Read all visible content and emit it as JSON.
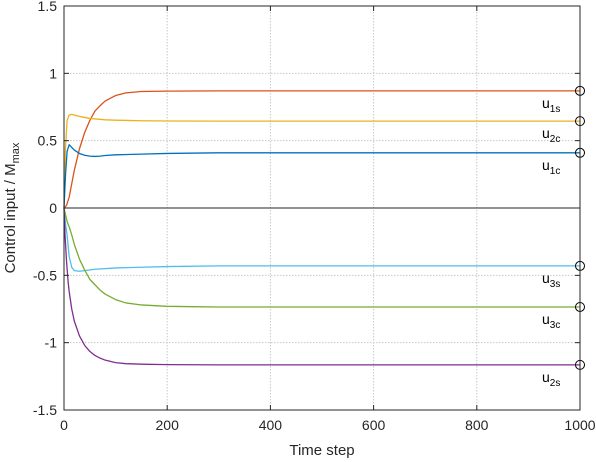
{
  "chart_data": {
    "type": "line",
    "xlabel": "Time step",
    "ylabel": "Control input / M",
    "ylabel_subscript": "max",
    "xlim": [
      0,
      1000
    ],
    "ylim": [
      -1.5,
      1.5
    ],
    "xticks": [
      0,
      200,
      400,
      600,
      800,
      1000
    ],
    "yticks": [
      -1.5,
      -1,
      -0.5,
      0,
      0.5,
      1,
      1.5
    ],
    "xtick_labels": [
      "0",
      "200",
      "400",
      "600",
      "800",
      "1000"
    ],
    "ytick_labels": [
      "-1.5",
      "-1",
      "-0.5",
      "0",
      "0.5",
      "1",
      "1.5"
    ],
    "grid": true,
    "end_markers": "open-circle",
    "series": [
      {
        "label": "u",
        "sub": "1s",
        "color": "#D95319",
        "x": [
          0,
          5,
          10,
          15,
          20,
          30,
          40,
          50,
          60,
          70,
          80,
          100,
          120,
          150,
          200,
          250,
          300,
          400,
          600,
          800,
          1000
        ],
        "y": [
          0,
          0.02,
          0.08,
          0.18,
          0.28,
          0.44,
          0.56,
          0.65,
          0.72,
          0.76,
          0.795,
          0.835,
          0.855,
          0.865,
          0.868,
          0.869,
          0.87,
          0.87,
          0.87,
          0.87,
          0.87
        ]
      },
      {
        "label": "u",
        "sub": "2c",
        "color": "#EDB120",
        "x": [
          0,
          3,
          6,
          10,
          15,
          20,
          30,
          50,
          80,
          100,
          150,
          200,
          300,
          400,
          600,
          800,
          1000
        ],
        "y": [
          0,
          0.45,
          0.65,
          0.69,
          0.695,
          0.69,
          0.68,
          0.665,
          0.655,
          0.652,
          0.648,
          0.646,
          0.645,
          0.645,
          0.645,
          0.645,
          0.645
        ]
      },
      {
        "label": "u",
        "sub": "1c",
        "color": "#0072BD",
        "x": [
          0,
          3,
          6,
          10,
          15,
          20,
          30,
          40,
          50,
          60,
          70,
          80,
          100,
          150,
          200,
          300,
          400,
          600,
          800,
          1000
        ],
        "y": [
          0,
          0.25,
          0.42,
          0.47,
          0.45,
          0.43,
          0.405,
          0.392,
          0.385,
          0.383,
          0.385,
          0.39,
          0.395,
          0.4,
          0.405,
          0.41,
          0.41,
          0.41,
          0.41,
          0.41
        ]
      },
      {
        "label": "u",
        "sub": "3s",
        "color": "#4DBEEE",
        "x": [
          0,
          3,
          6,
          10,
          15,
          20,
          30,
          40,
          60,
          80,
          100,
          150,
          200,
          300,
          400,
          600,
          800,
          1000
        ],
        "y": [
          0,
          -0.12,
          -0.2,
          -0.36,
          -0.44,
          -0.465,
          -0.47,
          -0.465,
          -0.455,
          -0.45,
          -0.445,
          -0.44,
          -0.435,
          -0.43,
          -0.43,
          -0.43,
          -0.43,
          -0.43
        ]
      },
      {
        "label": "u",
        "sub": "3c",
        "color": "#77AC30",
        "x": [
          0,
          3,
          6,
          10,
          15,
          20,
          30,
          40,
          50,
          60,
          70,
          80,
          100,
          120,
          150,
          200,
          250,
          300,
          400,
          600,
          800,
          1000
        ],
        "y": [
          0,
          -0.05,
          -0.1,
          -0.14,
          -0.2,
          -0.27,
          -0.38,
          -0.46,
          -0.53,
          -0.57,
          -0.61,
          -0.64,
          -0.68,
          -0.705,
          -0.72,
          -0.73,
          -0.733,
          -0.735,
          -0.735,
          -0.735,
          -0.735,
          -0.735
        ]
      },
      {
        "label": "u",
        "sub": "2s",
        "color": "#7E2F8E",
        "x": [
          0,
          2,
          5,
          8,
          10,
          15,
          20,
          30,
          40,
          50,
          60,
          70,
          80,
          100,
          120,
          150,
          200,
          300,
          400,
          600,
          800,
          1000
        ],
        "y": [
          0,
          -0.2,
          -0.4,
          -0.55,
          -0.62,
          -0.75,
          -0.84,
          -0.95,
          -1.02,
          -1.065,
          -1.095,
          -1.115,
          -1.13,
          -1.148,
          -1.156,
          -1.16,
          -1.163,
          -1.165,
          -1.165,
          -1.165,
          -1.165,
          -1.165
        ]
      }
    ]
  }
}
